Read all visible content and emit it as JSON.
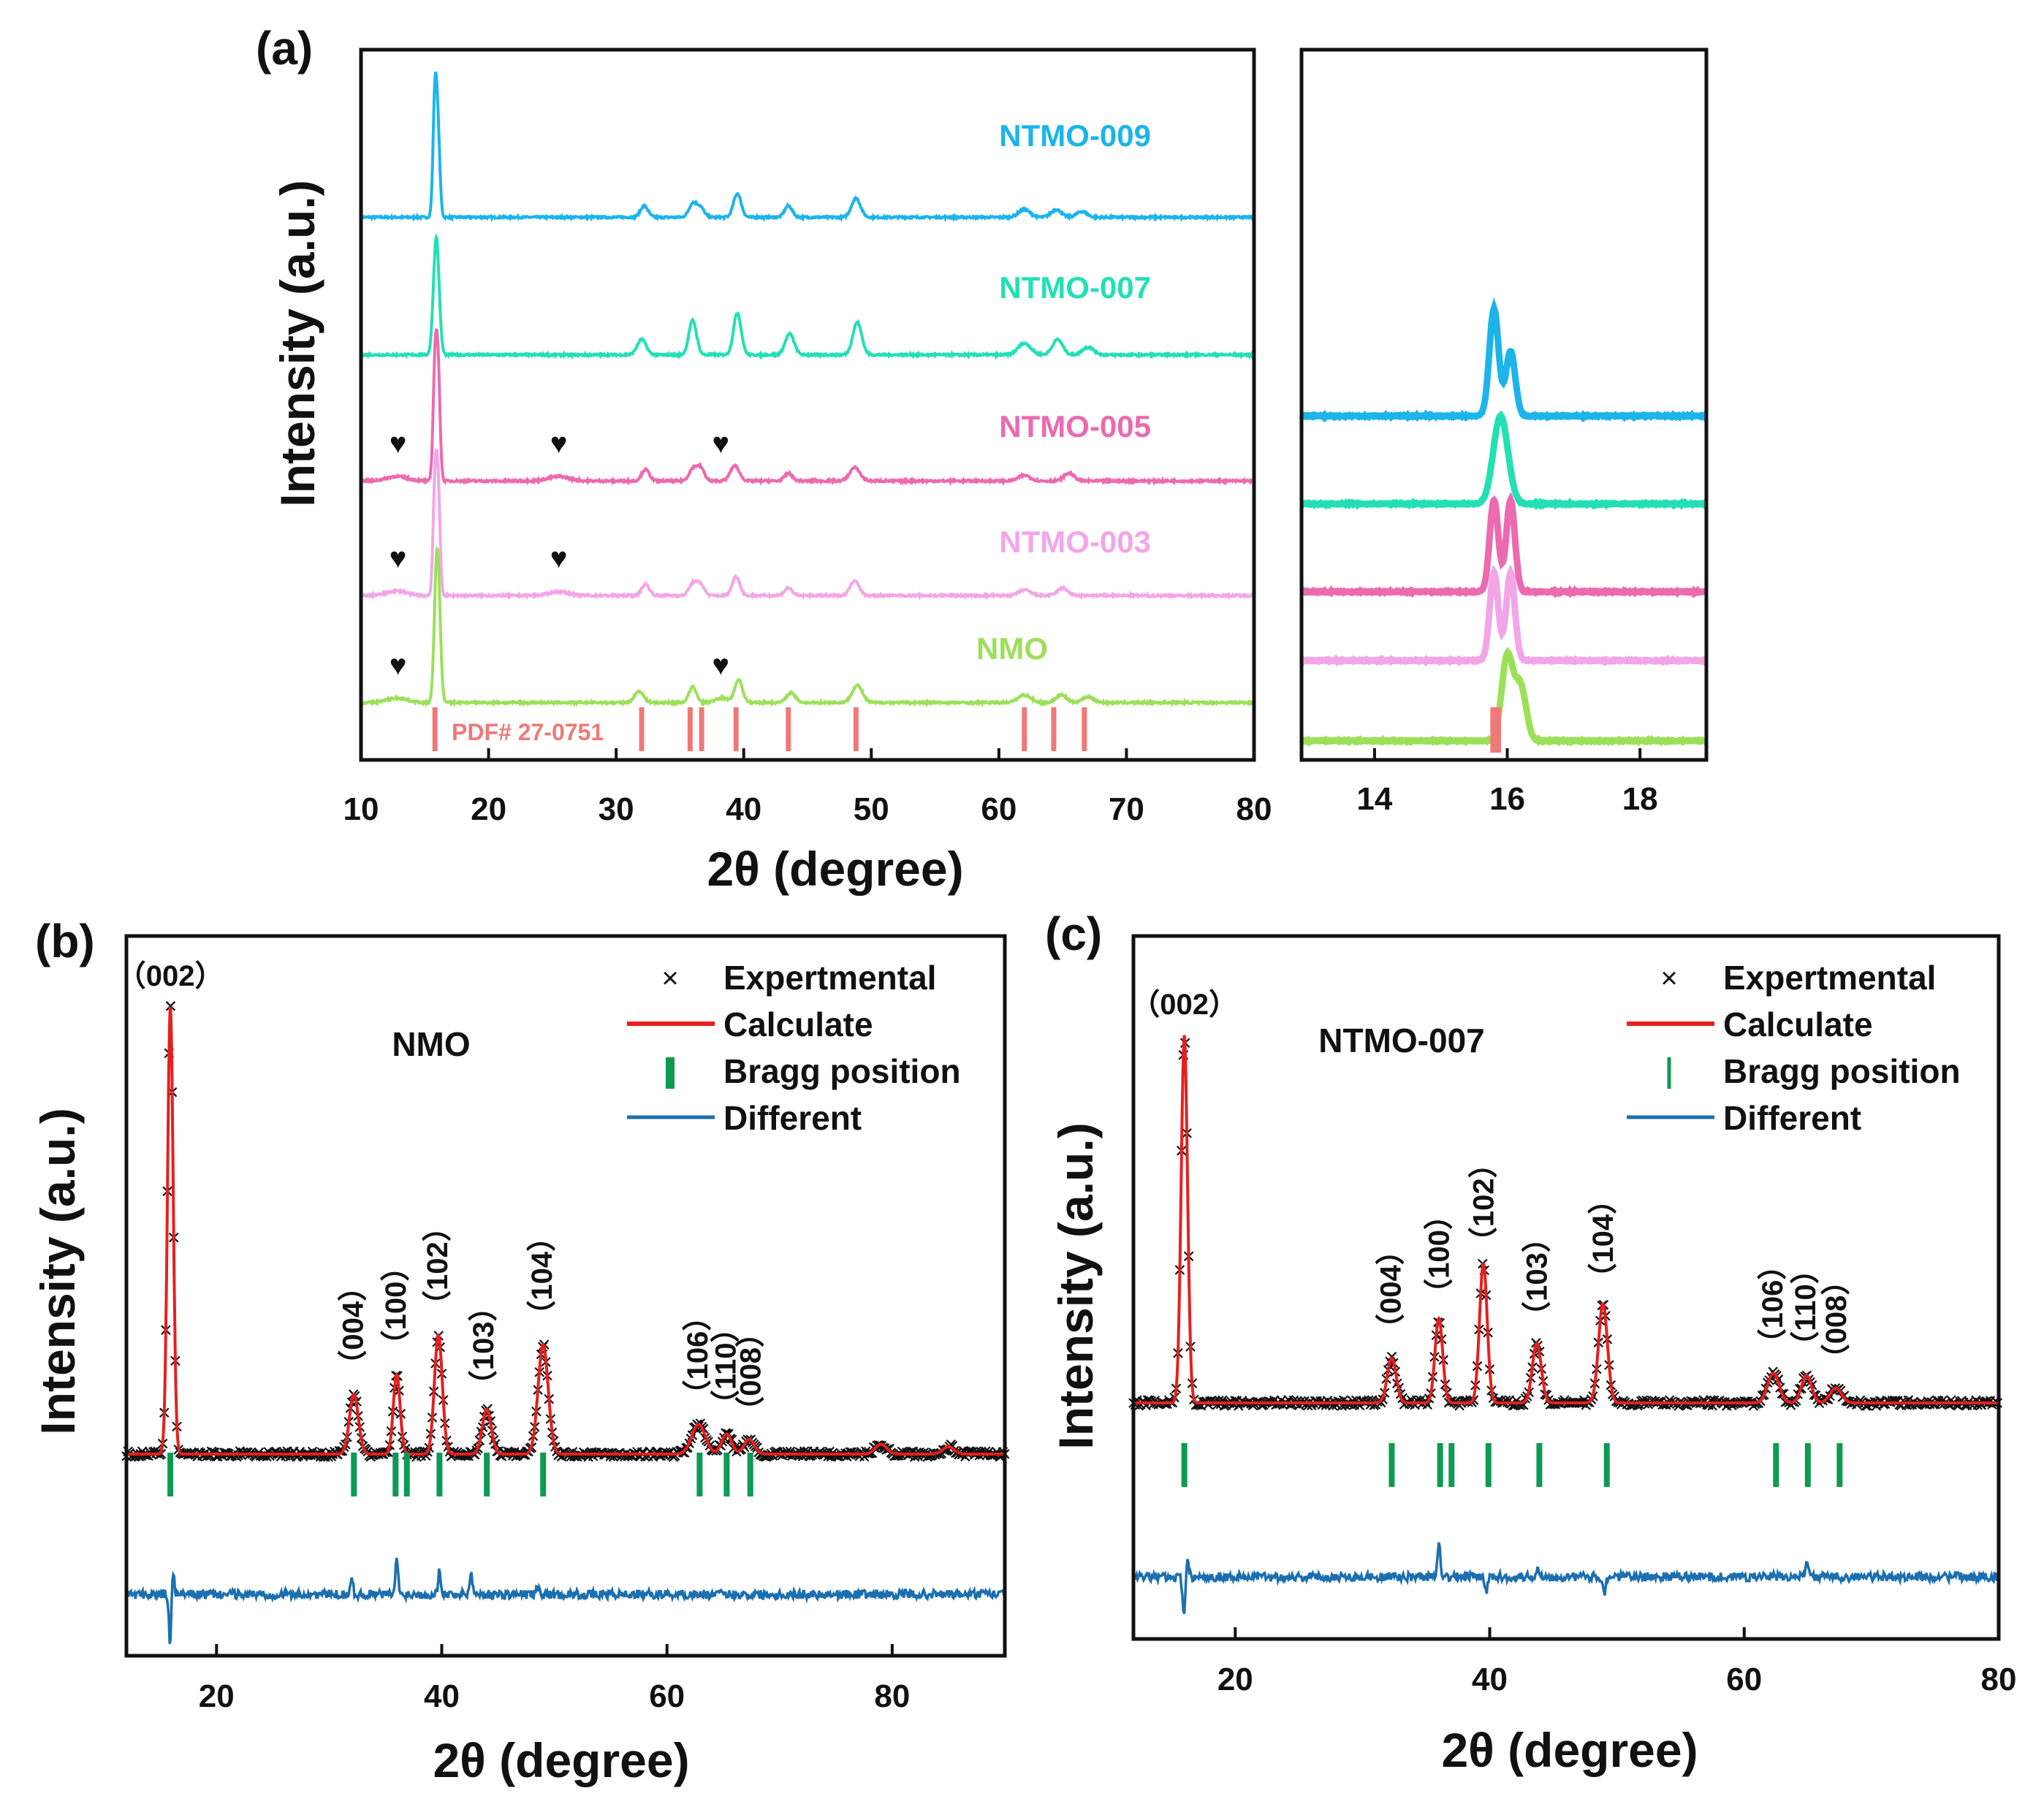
{
  "colors": {
    "frame": "#111111",
    "NTMO-009": "#1cb4ea",
    "NTMO-007": "#22e0b4",
    "NTMO-005": "#ec6aae",
    "NTMO-003": "#f2a6e8",
    "NMO": "#9ce05a",
    "pdf": "#f07878",
    "calc": "#e81e1e",
    "bragg": "#0c9a55",
    "diff": "#1b6fb0",
    "exp": "#111111"
  },
  "chart_data": [
    {
      "panel": "(a)",
      "type": "line",
      "xlabel": "2θ (degree)",
      "ylabel": "Intensity (a.u.)",
      "xlim": [
        10,
        80
      ],
      "xticks": [
        10,
        20,
        30,
        40,
        50,
        60,
        70,
        80
      ],
      "grid": false,
      "series": [
        {
          "name": "NTMO-009",
          "label": "NTMO-009",
          "offset": 14.2,
          "peaks": [
            [
              15.8,
              3.2,
              0.15
            ],
            [
              16.05,
              1.9,
              0.15
            ],
            [
              32.2,
              0.3,
              0.3
            ],
            [
              36.0,
              0.35,
              0.3
            ],
            [
              36.6,
              0.25,
              0.3
            ],
            [
              39.5,
              0.62,
              0.3
            ],
            [
              43.5,
              0.3,
              0.3
            ],
            [
              48.8,
              0.5,
              0.35
            ],
            [
              62.0,
              0.2,
              0.45
            ],
            [
              64.5,
              0.2,
              0.4
            ],
            [
              66.5,
              0.15,
              0.4
            ]
          ]
        },
        {
          "name": "NTMO-007",
          "label": "NTMO-007",
          "offset": 10.6,
          "peaks": [
            [
              15.9,
              3.1,
              0.22
            ],
            [
              32.0,
              0.4,
              0.35
            ],
            [
              36.0,
              0.9,
              0.3
            ],
            [
              39.5,
              1.1,
              0.3
            ],
            [
              43.6,
              0.55,
              0.35
            ],
            [
              48.9,
              0.85,
              0.35
            ],
            [
              62.0,
              0.3,
              0.5
            ],
            [
              64.6,
              0.4,
              0.4
            ],
            [
              67.0,
              0.2,
              0.45
            ]
          ]
        },
        {
          "name": "NTMO-005",
          "label": "NTMO-005",
          "offset": 7.3,
          "peaks": [
            [
              15.8,
              2.9,
              0.15
            ],
            [
              16.05,
              2.7,
              0.15
            ],
            [
              12.8,
              0.12,
              0.8
            ],
            [
              25.5,
              0.12,
              0.8
            ],
            [
              32.3,
              0.3,
              0.3
            ],
            [
              36.0,
              0.3,
              0.3
            ],
            [
              36.6,
              0.35,
              0.3
            ],
            [
              39.3,
              0.4,
              0.35
            ],
            [
              43.5,
              0.2,
              0.3
            ],
            [
              48.7,
              0.35,
              0.4
            ],
            [
              62.0,
              0.15,
              0.45
            ],
            [
              65.5,
              0.2,
              0.4
            ]
          ]
        },
        {
          "name": "NTMO-003",
          "label": "NTMO-003",
          "offset": 4.3,
          "peaks": [
            [
              15.8,
              2.8,
              0.15
            ],
            [
              16.05,
              2.6,
              0.15
            ],
            [
              12.8,
              0.12,
              0.8
            ],
            [
              25.5,
              0.1,
              0.8
            ],
            [
              32.3,
              0.3,
              0.3
            ],
            [
              36.0,
              0.3,
              0.3
            ],
            [
              36.6,
              0.3,
              0.3
            ],
            [
              39.4,
              0.5,
              0.3
            ],
            [
              43.5,
              0.2,
              0.3
            ],
            [
              48.7,
              0.4,
              0.35
            ],
            [
              62.0,
              0.15,
              0.45
            ],
            [
              65.0,
              0.2,
              0.4
            ]
          ]
        },
        {
          "name": "NMO",
          "label": "NMO",
          "offset": 1.5,
          "peaks": [
            [
              15.9,
              2.8,
              0.18
            ],
            [
              16.1,
              1.9,
              0.18
            ],
            [
              12.8,
              0.12,
              0.8
            ],
            [
              31.8,
              0.3,
              0.35
            ],
            [
              36.0,
              0.4,
              0.3
            ],
            [
              38.3,
              0.12,
              0.5
            ],
            [
              39.6,
              0.6,
              0.3
            ],
            [
              43.7,
              0.25,
              0.35
            ],
            [
              48.9,
              0.45,
              0.4
            ],
            [
              62.0,
              0.2,
              0.5
            ],
            [
              64.9,
              0.2,
              0.4
            ],
            [
              67.0,
              0.15,
              0.45
            ]
          ]
        }
      ],
      "reference": {
        "label": "PDF# 27-0751",
        "positions": [
          15.8,
          32.0,
          35.8,
          36.7,
          39.4,
          43.5,
          48.8,
          62.0,
          64.3,
          66.7
        ]
      },
      "markers": {
        "symbol": "♥",
        "points": [
          {
            "series": "NTMO-005",
            "x": [
              12.9,
              25.5,
              38.2
            ]
          },
          {
            "series": "NTMO-003",
            "x": [
              12.9,
              25.5
            ]
          },
          {
            "series": "NMO",
            "x": [
              12.9,
              38.2
            ]
          }
        ]
      }
    },
    {
      "panel": "(a) inset",
      "type": "line",
      "xlim": [
        12.9,
        19.0
      ],
      "xticks": [
        14,
        16,
        18
      ],
      "grid": false,
      "series": [
        {
          "name": "NTMO-009",
          "offset": 9.0,
          "peaks": [
            [
              15.8,
              2.8,
              0.07
            ],
            [
              16.05,
              1.7,
              0.07
            ]
          ]
        },
        {
          "name": "NTMO-007",
          "offset": 6.7,
          "peaks": [
            [
              15.9,
              2.3,
              0.11
            ]
          ]
        },
        {
          "name": "NTMO-005",
          "offset": 4.4,
          "peaks": [
            [
              15.8,
              2.4,
              0.065
            ],
            [
              16.05,
              2.4,
              0.065
            ]
          ]
        },
        {
          "name": "NTMO-003",
          "offset": 2.6,
          "peaks": [
            [
              15.8,
              2.3,
              0.065
            ],
            [
              16.05,
              2.3,
              0.065
            ]
          ]
        },
        {
          "name": "NMO",
          "offset": 0.5,
          "peaks": [
            [
              16.0,
              2.2,
              0.085
            ],
            [
              16.2,
              1.4,
              0.085
            ]
          ]
        }
      ],
      "reference": {
        "positions": [
          15.8,
          15.85
        ]
      }
    },
    {
      "panel": "(b)",
      "type": "scatter",
      "sample": "NMO",
      "xlabel": "2θ (degree)",
      "ylabel": "Intensity (a.u.)",
      "xlim": [
        12,
        90
      ],
      "xticks": [
        20,
        40,
        60,
        80
      ],
      "grid": false,
      "legend": {
        "position": "top-right",
        "entries": [
          "Expertmental",
          "Calculate",
          "Bragg position",
          "Different"
        ]
      },
      "baseline": 1.0,
      "peaks": [
        [
          15.9,
          9.0,
          0.25
        ],
        [
          32.2,
          1.2,
          0.4
        ],
        [
          36.0,
          1.6,
          0.3
        ],
        [
          39.7,
          2.4,
          0.35
        ],
        [
          44.0,
          0.9,
          0.4
        ],
        [
          49.0,
          2.2,
          0.45
        ],
        [
          62.8,
          0.6,
          0.6
        ],
        [
          65.3,
          0.4,
          0.45
        ],
        [
          67.3,
          0.3,
          0.45
        ],
        [
          79.0,
          0.2,
          0.5
        ],
        [
          85.0,
          0.15,
          0.5
        ]
      ],
      "bragg_positions": [
        15.9,
        32.2,
        35.9,
        36.9,
        39.8,
        44.0,
        49.0,
        62.9,
        65.3,
        67.4
      ],
      "hkl": [
        {
          "label": "（002）",
          "x": 15.9
        },
        {
          "label": "（004）",
          "x": 32.2
        },
        {
          "label": "（100）",
          "x": 36.0
        },
        {
          "label": "（102）",
          "x": 39.7
        },
        {
          "label": "（103）",
          "x": 43.8
        },
        {
          "label": "（104）",
          "x": 49.0
        },
        {
          "label": "（106）",
          "x": 62.8
        },
        {
          "label": "（110）",
          "x": 65.3
        },
        {
          "label": "（008）",
          "x": 67.5
        }
      ],
      "diff_spikes": [
        [
          15.9,
          -1.1
        ],
        [
          16.1,
          0.6
        ],
        [
          32.0,
          0.3
        ],
        [
          36.0,
          0.7
        ],
        [
          39.8,
          0.5
        ],
        [
          42.6,
          0.45
        ],
        [
          48.5,
          0.15
        ]
      ]
    },
    {
      "panel": "(c)",
      "type": "scatter",
      "sample": "NTMO-007",
      "xlabel": "2θ (degree)",
      "ylabel": "Intensity (a.u.)",
      "xlim": [
        12,
        80
      ],
      "xticks": [
        20,
        40,
        60,
        80
      ],
      "grid": false,
      "legend": {
        "position": "top-right",
        "entries": [
          "Expertmental",
          "Calculate",
          "Bragg position",
          "Different"
        ]
      },
      "baseline": 1.0,
      "peaks": [
        [
          16.0,
          7.4,
          0.25
        ],
        [
          32.3,
          0.9,
          0.35
        ],
        [
          36.0,
          1.7,
          0.3
        ],
        [
          39.5,
          2.8,
          0.3
        ],
        [
          43.7,
          1.2,
          0.35
        ],
        [
          48.9,
          2.0,
          0.35
        ],
        [
          62.3,
          0.6,
          0.45
        ],
        [
          64.9,
          0.55,
          0.4
        ],
        [
          67.2,
          0.3,
          0.45
        ]
      ],
      "bragg_positions": [
        16.0,
        32.3,
        36.1,
        37.0,
        39.9,
        43.9,
        49.2,
        62.5,
        65.0,
        67.5
      ],
      "hkl": [
        {
          "label": "（002）",
          "x": 16.0
        },
        {
          "label": "（004）",
          "x": 32.3
        },
        {
          "label": "（100）",
          "x": 36.1
        },
        {
          "label": "（102）",
          "x": 39.6
        },
        {
          "label": "（103）",
          "x": 43.8
        },
        {
          "label": "（104）",
          "x": 49.0
        },
        {
          "label": "（106）",
          "x": 62.3
        },
        {
          "label": "（110）",
          "x": 64.9
        },
        {
          "label": "（008）",
          "x": 67.3
        }
      ],
      "diff_spikes": [
        [
          16.0,
          -0.8
        ],
        [
          16.2,
          0.4
        ],
        [
          36.0,
          0.7
        ],
        [
          39.7,
          -0.3
        ],
        [
          43.8,
          0.2
        ],
        [
          49.0,
          -0.3
        ],
        [
          64.9,
          0.25
        ]
      ]
    }
  ]
}
